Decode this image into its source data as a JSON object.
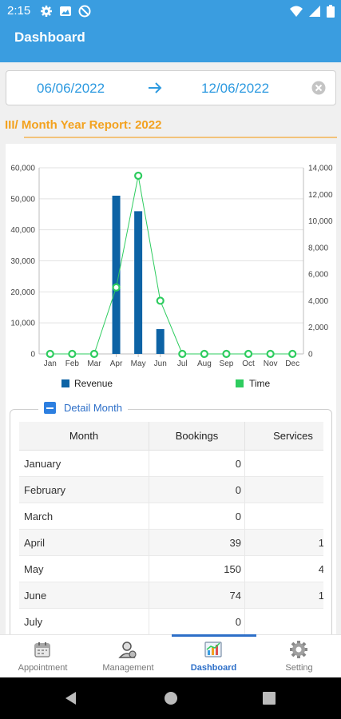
{
  "status_bar": {
    "time": "2:15"
  },
  "header": {
    "title": "Dashboard"
  },
  "date_range": {
    "start": "06/06/2022",
    "end": "12/06/2022"
  },
  "report": {
    "title": "III/ Month Year Report: 2022"
  },
  "chart_data": {
    "type": "bar",
    "categories": [
      "Jan",
      "Feb",
      "Mar",
      "Apr",
      "May",
      "Jun",
      "Jul",
      "Aug",
      "Sep",
      "Oct",
      "Nov",
      "Dec"
    ],
    "series": [
      {
        "name": "Revenue",
        "type": "bar",
        "axis": "left",
        "color": "#0d63a5",
        "values": [
          0,
          0,
          0,
          51000,
          46000,
          8000,
          0,
          0,
          0,
          0,
          0,
          0
        ]
      },
      {
        "name": "Time",
        "type": "line",
        "axis": "right",
        "color": "#2ecc5f",
        "values": [
          0,
          0,
          0,
          5000,
          13400,
          4000,
          0,
          0,
          0,
          0,
          0,
          0
        ]
      }
    ],
    "left_axis": {
      "ylim": [
        0,
        60000
      ],
      "ticks": [
        "0",
        "10,000",
        "20,000",
        "30,000",
        "40,000",
        "50,000",
        "60,000"
      ]
    },
    "right_axis": {
      "ylim": [
        0,
        14000
      ],
      "ticks": [
        "0",
        "2,000",
        "4,000",
        "6,000",
        "8,000",
        "10,000",
        "12,000",
        "14,000"
      ]
    },
    "grid": true,
    "legend": "bottom"
  },
  "detail": {
    "label": "Detail Month",
    "columns": [
      "Month",
      "Bookings",
      "Services"
    ],
    "rows": [
      {
        "month": "January",
        "bookings": "0",
        "services": ""
      },
      {
        "month": "February",
        "bookings": "0",
        "services": ""
      },
      {
        "month": "March",
        "bookings": "0",
        "services": ""
      },
      {
        "month": "April",
        "bookings": "39",
        "services": "1"
      },
      {
        "month": "May",
        "bookings": "150",
        "services": "4"
      },
      {
        "month": "June",
        "bookings": "74",
        "services": "1"
      },
      {
        "month": "July",
        "bookings": "0",
        "services": ""
      }
    ]
  },
  "bottom_nav": {
    "items": [
      {
        "label": "Appointment",
        "icon": "calendar-icon"
      },
      {
        "label": "Management",
        "icon": "user-management-icon"
      },
      {
        "label": "Dashboard",
        "icon": "dashboard-chart-icon",
        "active": true
      },
      {
        "label": "Setting",
        "icon": "gear-icon"
      }
    ]
  }
}
